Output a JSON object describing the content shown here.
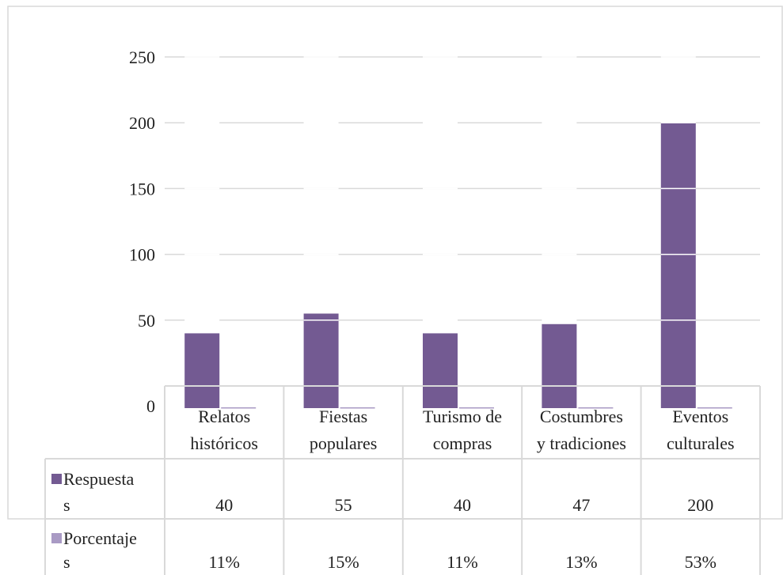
{
  "chart_data": {
    "type": "bar",
    "categories": [
      [
        "Relatos",
        "históricos"
      ],
      [
        "Fiestas",
        "populares"
      ],
      [
        "Turismo de",
        "compras"
      ],
      [
        "Costumbres",
        "y tradiciones"
      ],
      [
        "Eventos",
        "culturales"
      ]
    ],
    "series": [
      {
        "name": [
          "Respuesta",
          "s"
        ],
        "values": [
          40,
          55,
          40,
          47,
          200
        ],
        "color": "#735a92"
      },
      {
        "name": [
          "Porcentaje",
          "s"
        ],
        "values": [
          0.11,
          0.15,
          0.11,
          0.13,
          0.53
        ],
        "color": "#a99ac4"
      }
    ],
    "table_values": [
      [
        "40",
        "55",
        "40",
        "47",
        "200"
      ],
      [
        "11%",
        "15%",
        "11%",
        "13%",
        "53%"
      ]
    ],
    "y_ticks": [
      "0",
      "50",
      "100",
      "150",
      "200",
      "250"
    ],
    "ylim": [
      0,
      250
    ],
    "grid": true,
    "legend": "data-table"
  }
}
